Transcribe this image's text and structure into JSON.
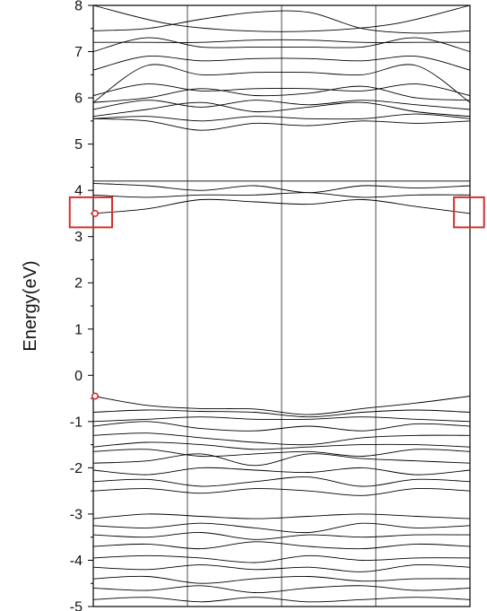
{
  "chart_data": {
    "type": "line",
    "title": "",
    "xlabel": "",
    "ylabel": "Energy(eV)",
    "ylim": [
      -5,
      8
    ],
    "xlim": [
      0,
      4
    ],
    "y_ticks": [
      "-5",
      "-4",
      "-3",
      "-2",
      "-1",
      "0",
      "1",
      "2",
      "3",
      "4",
      "5",
      "6",
      "7",
      "8"
    ],
    "x_tick_labels": [],
    "high_symmetry_x": [
      1,
      2,
      3
    ],
    "grid": false,
    "colors": {
      "bands": "#000000",
      "highlight": "#d32f2f"
    },
    "highlight_points": [
      {
        "name": "cbm-marker",
        "x": 0.0,
        "y": 3.5
      },
      {
        "name": "vbm-marker",
        "x": 0.0,
        "y": -0.45
      }
    ],
    "highlight_boxes": [
      {
        "name": "left-highlight-box",
        "x_range": [
          -0.25,
          0.2
        ],
        "y_range": [
          3.2,
          3.85
        ]
      },
      {
        "name": "right-highlight-box",
        "x_range": [
          3.83,
          4.15
        ],
        "y_range": [
          3.2,
          3.85
        ]
      }
    ],
    "series": [
      {
        "values": [
          8.0,
          7.6,
          7.45,
          7.45,
          7.6,
          8.0
        ]
      },
      {
        "values": [
          7.45,
          7.5,
          7.7,
          7.85,
          7.85,
          7.5,
          7.4,
          7.45
        ]
      },
      {
        "values": [
          7.2,
          7.2,
          7.2,
          7.25,
          7.25,
          7.2,
          7.2,
          7.2
        ]
      },
      {
        "values": [
          7.0,
          7.3,
          7.1,
          7.1,
          7.1,
          7.1,
          7.3,
          7.0
        ]
      },
      {
        "values": [
          6.6,
          6.9,
          6.8,
          6.85,
          6.85,
          6.8,
          6.9,
          6.6
        ]
      },
      {
        "values": [
          5.9,
          6.7,
          6.5,
          6.55,
          6.55,
          6.5,
          6.7,
          5.9
        ]
      },
      {
        "values": [
          6.05,
          6.3,
          6.15,
          6.2,
          6.2,
          6.15,
          6.3,
          6.05
        ]
      },
      {
        "values": [
          5.9,
          6.0,
          6.2,
          6.05,
          6.1,
          6.25,
          6.0,
          5.95
        ]
      },
      {
        "values": [
          5.75,
          5.95,
          5.8,
          5.95,
          5.85,
          5.95,
          5.85,
          5.75
        ]
      },
      {
        "values": [
          5.6,
          5.75,
          5.9,
          5.7,
          5.8,
          5.9,
          5.7,
          5.6
        ]
      },
      {
        "values": [
          5.55,
          5.6,
          5.5,
          5.6,
          5.55,
          5.55,
          5.65,
          5.55
        ]
      },
      {
        "values": [
          5.55,
          5.5,
          5.3,
          5.45,
          5.4,
          5.5,
          5.45,
          5.5
        ]
      },
      {
        "values": [
          4.2,
          4.2,
          4.2,
          4.2,
          4.2,
          4.2,
          4.2,
          4.2
        ]
      },
      {
        "values": [
          4.15,
          4.1,
          4.0,
          4.1,
          3.95,
          4.1,
          4.05,
          4.1
        ]
      },
      {
        "values": [
          3.9,
          3.85,
          3.9,
          3.9,
          3.95,
          3.85,
          3.9,
          3.9
        ]
      },
      {
        "values": [
          3.5,
          3.6,
          3.8,
          3.75,
          3.7,
          3.8,
          3.65,
          3.5
        ]
      },
      {
        "values": [
          -0.45,
          -0.65,
          -0.72,
          -0.73,
          -0.85,
          -0.72,
          -0.6,
          -0.45
        ]
      },
      {
        "values": [
          -0.8,
          -0.75,
          -0.78,
          -0.8,
          -0.9,
          -0.8,
          -0.75,
          -0.8
        ]
      },
      {
        "values": [
          -1.0,
          -0.95,
          -0.9,
          -0.95,
          -0.95,
          -0.9,
          -0.95,
          -1.0
        ]
      },
      {
        "values": [
          -1.1,
          -1.0,
          -1.15,
          -1.2,
          -1.1,
          -1.2,
          -1.05,
          -1.1
        ]
      },
      {
        "values": [
          -1.3,
          -1.25,
          -1.35,
          -1.45,
          -1.5,
          -1.35,
          -1.3,
          -1.3
        ]
      },
      {
        "values": [
          -1.55,
          -1.45,
          -1.5,
          -1.6,
          -1.55,
          -1.5,
          -1.5,
          -1.55
        ]
      },
      {
        "values": [
          -1.65,
          -1.6,
          -1.75,
          -1.7,
          -1.65,
          -1.75,
          -1.6,
          -1.65
        ]
      },
      {
        "values": [
          -1.9,
          -1.85,
          -1.7,
          -1.95,
          -1.7,
          -1.8,
          -1.85,
          -1.9
        ]
      },
      {
        "values": [
          -2.05,
          -2.15,
          -2.0,
          -2.05,
          -2.1,
          -2.0,
          -2.15,
          -2.05
        ]
      },
      {
        "values": [
          -2.3,
          -2.25,
          -2.4,
          -2.3,
          -2.2,
          -2.4,
          -2.25,
          -2.3
        ]
      },
      {
        "values": [
          -2.5,
          -2.45,
          -2.55,
          -2.45,
          -2.5,
          -2.6,
          -2.45,
          -2.5
        ]
      },
      {
        "values": [
          -3.1,
          -3.0,
          -3.05,
          -3.1,
          -3.05,
          -3.0,
          -3.05,
          -3.1
        ]
      },
      {
        "values": [
          -3.25,
          -3.3,
          -3.2,
          -3.3,
          -3.4,
          -3.2,
          -3.3,
          -3.25
        ]
      },
      {
        "values": [
          -3.45,
          -3.5,
          -3.4,
          -3.55,
          -3.45,
          -3.5,
          -3.45,
          -3.45
        ]
      },
      {
        "values": [
          -3.7,
          -3.65,
          -3.75,
          -3.6,
          -3.7,
          -3.75,
          -3.65,
          -3.7
        ]
      },
      {
        "values": [
          -3.95,
          -3.9,
          -3.95,
          -4.05,
          -3.9,
          -4.0,
          -3.95,
          -3.95
        ]
      },
      {
        "values": [
          -4.15,
          -4.2,
          -4.1,
          -4.2,
          -4.15,
          -4.25,
          -4.1,
          -4.15
        ]
      },
      {
        "values": [
          -4.4,
          -4.35,
          -4.5,
          -4.4,
          -4.35,
          -4.45,
          -4.4,
          -4.4
        ]
      },
      {
        "values": [
          -4.6,
          -4.65,
          -4.55,
          -4.7,
          -4.6,
          -4.55,
          -4.65,
          -4.6
        ]
      },
      {
        "values": [
          -4.85,
          -4.8,
          -4.9,
          -4.8,
          -4.9,
          -4.85,
          -4.8,
          -4.85
        ]
      }
    ]
  }
}
